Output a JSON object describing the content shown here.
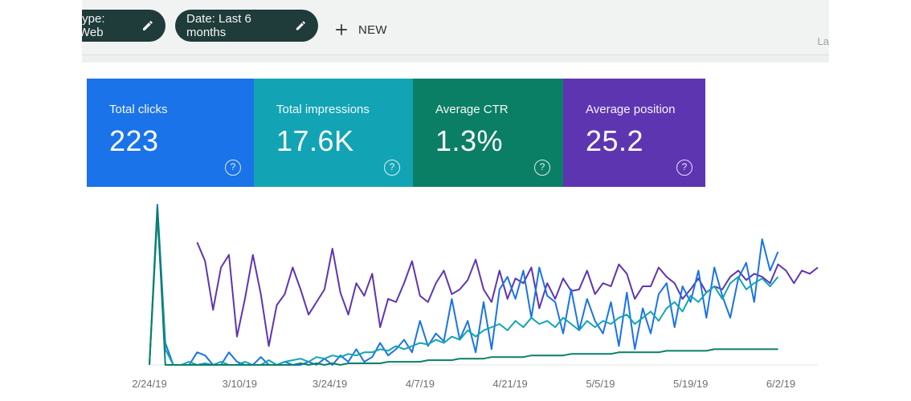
{
  "filters": {
    "type_chip": "type: Web",
    "date_chip": "Date: Last 6 months",
    "new_button": "NEW",
    "edge_text": "La"
  },
  "metrics": [
    {
      "label": "Total clicks",
      "value": "223",
      "color": "#1a73e8"
    },
    {
      "label": "Total impressions",
      "value": "17.6K",
      "color": "#12a4b4"
    },
    {
      "label": "Average CTR",
      "value": "1.3%",
      "color": "#0b7f66"
    },
    {
      "label": "Average position",
      "value": "25.2",
      "color": "#5e35b1"
    }
  ],
  "help_glyph": "?",
  "chart_data": {
    "type": "line",
    "x_ticks": [
      "2/24/19",
      "3/10/19",
      "3/24/19",
      "4/7/19",
      "4/21/19",
      "5/5/19",
      "5/19/19",
      "6/2/19"
    ],
    "series": [
      {
        "color": "#5e35b1",
        "values": [
          null,
          null,
          null,
          null,
          null,
          null,
          0.78,
          0.66,
          0.35,
          0.62,
          0.7,
          0.18,
          0.42,
          0.7,
          0.45,
          0.12,
          0.38,
          0.45,
          0.62,
          0.48,
          0.32,
          0.4,
          0.48,
          0.74,
          0.46,
          0.32,
          0.52,
          0.44,
          0.58,
          0.24,
          0.42,
          0.4,
          0.52,
          0.66,
          0.44,
          0.4,
          0.52,
          0.6,
          0.45,
          0.48,
          0.54,
          0.67,
          0.48,
          0.4,
          0.6,
          0.42,
          0.55,
          0.52,
          0.62,
          0.36,
          0.52,
          0.42,
          0.55,
          0.47,
          0.48,
          0.6,
          0.45,
          0.52,
          0.5,
          0.64,
          0.58,
          0.42,
          0.5,
          0.5,
          0.62,
          0.56,
          0.52,
          0.42,
          0.48,
          0.55,
          0.46,
          0.5,
          0.48,
          0.56,
          0.6,
          0.54,
          0.58,
          0.56,
          0.52,
          0.64,
          0.6,
          0.52,
          0.6,
          0.58,
          0.62
        ]
      },
      {
        "color": "#1a73e8",
        "values": [
          0.0,
          1.02,
          0.14,
          0.0,
          0.0,
          0.0,
          0.08,
          0.06,
          0.0,
          0.0,
          0.08,
          0.02,
          0.0,
          0.0,
          0.05,
          0.0,
          0.0,
          0.02,
          0.0,
          0.0,
          0.02,
          0.0,
          0.04,
          0.0,
          0.06,
          0.02,
          0.1,
          0.02,
          0.05,
          0.14,
          0.06,
          0.1,
          0.16,
          0.08,
          0.28,
          0.12,
          0.2,
          0.15,
          0.42,
          0.16,
          0.28,
          0.08,
          0.4,
          0.1,
          0.48,
          0.56,
          0.42,
          0.6,
          0.3,
          0.62,
          0.44,
          0.4,
          0.2,
          0.48,
          0.22,
          0.42,
          0.28,
          0.2,
          0.4,
          0.12,
          0.46,
          0.1,
          0.36,
          0.2,
          0.45,
          0.52,
          0.24,
          0.5,
          0.4,
          0.6,
          0.3,
          0.62,
          0.44,
          0.3,
          0.55,
          0.65,
          0.4,
          0.8,
          0.6,
          0.72
        ]
      },
      {
        "color": "#12a4b4",
        "values": [
          0.0,
          0.95,
          0.1,
          0.0,
          0.0,
          0.02,
          0.0,
          0.01,
          0.0,
          0.02,
          0.0,
          0.0,
          0.02,
          0.0,
          0.0,
          0.03,
          0.0,
          0.02,
          0.03,
          0.04,
          0.02,
          0.05,
          0.04,
          0.06,
          0.05,
          0.07,
          0.06,
          0.08,
          0.08,
          0.1,
          0.09,
          0.12,
          0.1,
          0.12,
          0.14,
          0.13,
          0.16,
          0.14,
          0.18,
          0.16,
          0.22,
          0.18,
          0.22,
          0.24,
          0.26,
          0.22,
          0.28,
          0.24,
          0.3,
          0.26,
          0.28,
          0.24,
          0.3,
          0.26,
          0.22,
          0.28,
          0.24,
          0.28,
          0.26,
          0.3,
          0.32,
          0.26,
          0.3,
          0.34,
          0.28,
          0.36,
          0.4,
          0.34,
          0.44,
          0.4,
          0.46,
          0.5,
          0.42,
          0.52,
          0.56,
          0.48,
          0.52,
          0.55,
          0.5,
          0.56
        ]
      },
      {
        "color": "#0b7f66",
        "values": [
          0.0,
          1.0,
          0.0,
          0.0,
          0.0,
          0.0,
          0.0,
          0.0,
          0.0,
          0.0,
          0.0,
          0.0,
          0.0,
          0.0,
          0.0,
          0.0,
          0.0,
          0.0,
          0.0,
          0.01,
          0.0,
          0.01,
          0.0,
          0.01,
          0.0,
          0.01,
          0.01,
          0.01,
          0.01,
          0.01,
          0.02,
          0.02,
          0.02,
          0.02,
          0.02,
          0.03,
          0.03,
          0.03,
          0.03,
          0.04,
          0.04,
          0.04,
          0.04,
          0.05,
          0.05,
          0.05,
          0.05,
          0.05,
          0.06,
          0.06,
          0.06,
          0.06,
          0.06,
          0.07,
          0.07,
          0.07,
          0.07,
          0.07,
          0.07,
          0.08,
          0.08,
          0.08,
          0.08,
          0.08,
          0.08,
          0.09,
          0.09,
          0.09,
          0.09,
          0.09,
          0.09,
          0.1,
          0.1,
          0.1,
          0.1,
          0.1,
          0.1,
          0.1,
          0.1,
          0.1
        ]
      }
    ]
  }
}
